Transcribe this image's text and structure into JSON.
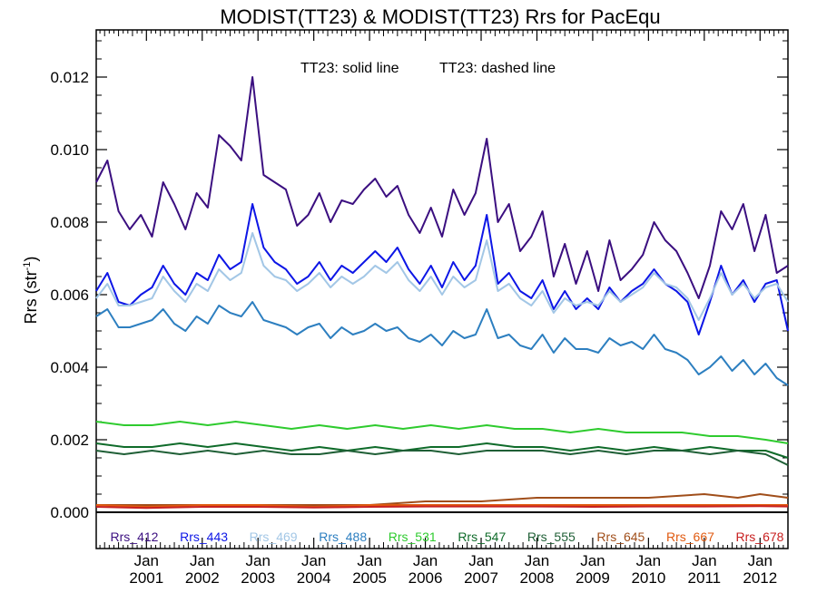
{
  "chart_data": {
    "type": "line",
    "title": "MODIST(TT23) & MODIST(TT23)  Rrs for PacEqu",
    "annotation_solid": "TT23: solid line",
    "annotation_dashed": "TT23: dashed line",
    "ylabel": "Rrs (str",
    "ylabel_sup": "-1",
    "ylabel_close": ")",
    "ylim": [
      -0.001,
      0.0133
    ],
    "yticks": [
      "0.000",
      "0.002",
      "0.004",
      "0.006",
      "0.008",
      "0.010",
      "0.012"
    ],
    "x_range": [
      2000.1,
      2012.5
    ],
    "xticks_month": [
      "Jan",
      "Jan",
      "Jan",
      "Jan",
      "Jan",
      "Jan",
      "Jan",
      "Jan",
      "Jan",
      "Jan",
      "Jan",
      "Jan"
    ],
    "xticks_year": [
      "2001",
      "2002",
      "2003",
      "2004",
      "2005",
      "2006",
      "2007",
      "2008",
      "2009",
      "2010",
      "2011",
      "2012"
    ],
    "grid": false,
    "legend_position": "bottom",
    "series": [
      {
        "name": "Rrs_412",
        "color": "#3b0f80",
        "x": [
          2000.1,
          2000.3,
          2000.5,
          2000.7,
          2000.9,
          2001.1,
          2001.3,
          2001.5,
          2001.7,
          2001.9,
          2002.1,
          2002.3,
          2002.5,
          2002.7,
          2002.9,
          2003.1,
          2003.3,
          2003.5,
          2003.7,
          2003.9,
          2004.1,
          2004.3,
          2004.5,
          2004.7,
          2004.9,
          2005.1,
          2005.3,
          2005.5,
          2005.7,
          2005.9,
          2006.1,
          2006.3,
          2006.5,
          2006.7,
          2006.9,
          2007.1,
          2007.3,
          2007.5,
          2007.7,
          2007.9,
          2008.1,
          2008.3,
          2008.5,
          2008.7,
          2008.9,
          2009.1,
          2009.3,
          2009.5,
          2009.7,
          2009.9,
          2010.1,
          2010.3,
          2010.5,
          2010.7,
          2010.9,
          2011.1,
          2011.3,
          2011.5,
          2011.7,
          2011.9,
          2012.1,
          2012.3,
          2012.5
        ],
        "values": [
          0.0091,
          0.0097,
          0.0083,
          0.0078,
          0.0082,
          0.0076,
          0.0091,
          0.0085,
          0.0078,
          0.0088,
          0.0084,
          0.0104,
          0.0101,
          0.0097,
          0.012,
          0.0093,
          0.0091,
          0.0089,
          0.0079,
          0.0082,
          0.0088,
          0.008,
          0.0086,
          0.0085,
          0.0089,
          0.0092,
          0.0087,
          0.009,
          0.0082,
          0.0077,
          0.0084,
          0.0076,
          0.0089,
          0.0082,
          0.0088,
          0.0103,
          0.008,
          0.0085,
          0.0072,
          0.0076,
          0.0083,
          0.0065,
          0.0074,
          0.0063,
          0.0072,
          0.0061,
          0.0075,
          0.0064,
          0.0067,
          0.0071,
          0.008,
          0.0075,
          0.0072,
          0.0066,
          0.0059,
          0.0068,
          0.0083,
          0.0078,
          0.0085,
          0.0072,
          0.0082,
          0.0066,
          0.0068
        ]
      },
      {
        "name": "Rrs_443",
        "color": "#0d16e6",
        "x": [
          2000.1,
          2000.3,
          2000.5,
          2000.7,
          2000.9,
          2001.1,
          2001.3,
          2001.5,
          2001.7,
          2001.9,
          2002.1,
          2002.3,
          2002.5,
          2002.7,
          2002.9,
          2003.1,
          2003.3,
          2003.5,
          2003.7,
          2003.9,
          2004.1,
          2004.3,
          2004.5,
          2004.7,
          2004.9,
          2005.1,
          2005.3,
          2005.5,
          2005.7,
          2005.9,
          2006.1,
          2006.3,
          2006.5,
          2006.7,
          2006.9,
          2007.1,
          2007.3,
          2007.5,
          2007.7,
          2007.9,
          2008.1,
          2008.3,
          2008.5,
          2008.7,
          2008.9,
          2009.1,
          2009.3,
          2009.5,
          2009.7,
          2009.9,
          2010.1,
          2010.3,
          2010.5,
          2010.7,
          2010.9,
          2011.1,
          2011.3,
          2011.5,
          2011.7,
          2011.9,
          2012.1,
          2012.3,
          2012.5
        ],
        "values": [
          0.0061,
          0.0066,
          0.0058,
          0.0057,
          0.006,
          0.0062,
          0.0068,
          0.0063,
          0.006,
          0.0066,
          0.0064,
          0.0071,
          0.0067,
          0.0069,
          0.0085,
          0.0073,
          0.0069,
          0.0067,
          0.0063,
          0.0065,
          0.0069,
          0.0064,
          0.0068,
          0.0066,
          0.0069,
          0.0072,
          0.0069,
          0.0073,
          0.0067,
          0.0063,
          0.0068,
          0.0062,
          0.0069,
          0.0064,
          0.0068,
          0.0082,
          0.0063,
          0.0066,
          0.0061,
          0.0059,
          0.0064,
          0.0056,
          0.0061,
          0.0056,
          0.0059,
          0.0056,
          0.0062,
          0.0058,
          0.0061,
          0.0063,
          0.0067,
          0.0063,
          0.0061,
          0.0058,
          0.0049,
          0.0058,
          0.0068,
          0.006,
          0.0064,
          0.0058,
          0.0063,
          0.0064,
          0.005
        ]
      },
      {
        "name": "Rrs_469",
        "color": "#a3c7e6",
        "x": [
          2000.1,
          2000.3,
          2000.5,
          2000.7,
          2000.9,
          2001.1,
          2001.3,
          2001.5,
          2001.7,
          2001.9,
          2002.1,
          2002.3,
          2002.5,
          2002.7,
          2002.9,
          2003.1,
          2003.3,
          2003.5,
          2003.7,
          2003.9,
          2004.1,
          2004.3,
          2004.5,
          2004.7,
          2004.9,
          2005.1,
          2005.3,
          2005.5,
          2005.7,
          2005.9,
          2006.1,
          2006.3,
          2006.5,
          2006.7,
          2006.9,
          2007.1,
          2007.3,
          2007.5,
          2007.7,
          2007.9,
          2008.1,
          2008.3,
          2008.5,
          2008.7,
          2008.9,
          2009.1,
          2009.3,
          2009.5,
          2009.7,
          2009.9,
          2010.1,
          2010.3,
          2010.5,
          2010.7,
          2010.9,
          2011.1,
          2011.3,
          2011.5,
          2011.7,
          2011.9,
          2012.1,
          2012.3,
          2012.5
        ],
        "values": [
          0.0059,
          0.0063,
          0.0057,
          0.0057,
          0.0058,
          0.0059,
          0.0065,
          0.0061,
          0.0058,
          0.0063,
          0.0061,
          0.0067,
          0.0064,
          0.0066,
          0.0077,
          0.0068,
          0.0065,
          0.0064,
          0.0061,
          0.0063,
          0.0066,
          0.0062,
          0.0065,
          0.0063,
          0.0065,
          0.0068,
          0.0066,
          0.0069,
          0.0064,
          0.0061,
          0.0065,
          0.006,
          0.0065,
          0.0062,
          0.0064,
          0.0075,
          0.0061,
          0.0063,
          0.0059,
          0.0057,
          0.0061,
          0.0055,
          0.0059,
          0.0057,
          0.0058,
          0.0057,
          0.0061,
          0.0058,
          0.006,
          0.0062,
          0.0066,
          0.0063,
          0.0062,
          0.0059,
          0.0053,
          0.0059,
          0.0066,
          0.006,
          0.0063,
          0.0059,
          0.0062,
          0.0063,
          0.0058
        ]
      },
      {
        "name": "Rrs_488",
        "color": "#2d7fc0",
        "x": [
          2000.1,
          2000.3,
          2000.5,
          2000.7,
          2000.9,
          2001.1,
          2001.3,
          2001.5,
          2001.7,
          2001.9,
          2002.1,
          2002.3,
          2002.5,
          2002.7,
          2002.9,
          2003.1,
          2003.3,
          2003.5,
          2003.7,
          2003.9,
          2004.1,
          2004.3,
          2004.5,
          2004.7,
          2004.9,
          2005.1,
          2005.3,
          2005.5,
          2005.7,
          2005.9,
          2006.1,
          2006.3,
          2006.5,
          2006.7,
          2006.9,
          2007.1,
          2007.3,
          2007.5,
          2007.7,
          2007.9,
          2008.1,
          2008.3,
          2008.5,
          2008.7,
          2008.9,
          2009.1,
          2009.3,
          2009.5,
          2009.7,
          2009.9,
          2010.1,
          2010.3,
          2010.5,
          2010.7,
          2010.9,
          2011.1,
          2011.3,
          2011.5,
          2011.7,
          2011.9,
          2012.1,
          2012.3,
          2012.5
        ],
        "values": [
          0.0054,
          0.0056,
          0.0051,
          0.0051,
          0.0052,
          0.0053,
          0.0056,
          0.0052,
          0.005,
          0.0054,
          0.0052,
          0.0057,
          0.0055,
          0.0054,
          0.0058,
          0.0053,
          0.0052,
          0.0051,
          0.0049,
          0.0051,
          0.0052,
          0.0048,
          0.0051,
          0.0049,
          0.005,
          0.0052,
          0.005,
          0.0051,
          0.0048,
          0.0047,
          0.0049,
          0.0046,
          0.005,
          0.0048,
          0.0049,
          0.0056,
          0.0048,
          0.0049,
          0.0046,
          0.0045,
          0.0049,
          0.0044,
          0.0048,
          0.0045,
          0.0045,
          0.0044,
          0.0048,
          0.0046,
          0.0047,
          0.0045,
          0.0049,
          0.0045,
          0.0044,
          0.0042,
          0.0038,
          0.004,
          0.0043,
          0.0039,
          0.0042,
          0.0038,
          0.0041,
          0.0037,
          0.0035
        ]
      },
      {
        "name": "Rrs_531",
        "color": "#2ecb2e",
        "x": [
          2000.1,
          2000.6,
          2001.1,
          2001.6,
          2002.1,
          2002.6,
          2003.1,
          2003.6,
          2004.1,
          2004.6,
          2005.1,
          2005.6,
          2006.1,
          2006.6,
          2007.1,
          2007.6,
          2008.1,
          2008.6,
          2009.1,
          2009.6,
          2010.1,
          2010.6,
          2011.1,
          2011.6,
          2012.1,
          2012.5
        ],
        "values": [
          0.0025,
          0.0024,
          0.0024,
          0.0025,
          0.0024,
          0.0025,
          0.0024,
          0.0023,
          0.0024,
          0.0023,
          0.0024,
          0.0023,
          0.0024,
          0.0023,
          0.0024,
          0.0023,
          0.0023,
          0.0022,
          0.0023,
          0.0022,
          0.0022,
          0.0022,
          0.0021,
          0.0021,
          0.002,
          0.0019
        ]
      },
      {
        "name": "Rrs_547",
        "color": "#0f6b2a",
        "x": [
          2000.1,
          2000.6,
          2001.1,
          2001.6,
          2002.1,
          2002.6,
          2003.1,
          2003.6,
          2004.1,
          2004.6,
          2005.1,
          2005.6,
          2006.1,
          2006.6,
          2007.1,
          2007.6,
          2008.1,
          2008.6,
          2009.1,
          2009.6,
          2010.1,
          2010.6,
          2011.1,
          2011.6,
          2012.1,
          2012.5
        ],
        "values": [
          0.0019,
          0.0018,
          0.0018,
          0.0019,
          0.0018,
          0.0019,
          0.0018,
          0.0017,
          0.0018,
          0.0017,
          0.0018,
          0.0017,
          0.0018,
          0.0018,
          0.0019,
          0.0018,
          0.0018,
          0.0017,
          0.0018,
          0.0017,
          0.0018,
          0.0017,
          0.0018,
          0.0017,
          0.0017,
          0.0015
        ]
      },
      {
        "name": "Rrs_555",
        "color": "#1f5f36",
        "x": [
          2000.1,
          2000.6,
          2001.1,
          2001.6,
          2002.1,
          2002.6,
          2003.1,
          2003.6,
          2004.1,
          2004.6,
          2005.1,
          2005.6,
          2006.1,
          2006.6,
          2007.1,
          2007.6,
          2008.1,
          2008.6,
          2009.1,
          2009.6,
          2010.1,
          2010.6,
          2011.1,
          2011.6,
          2012.1,
          2012.5
        ],
        "values": [
          0.0017,
          0.0016,
          0.0017,
          0.0016,
          0.0017,
          0.0016,
          0.0017,
          0.0016,
          0.0016,
          0.0017,
          0.0016,
          0.0017,
          0.0017,
          0.0016,
          0.0017,
          0.0017,
          0.0017,
          0.0016,
          0.0017,
          0.0016,
          0.0017,
          0.0017,
          0.0016,
          0.0017,
          0.0016,
          0.0013
        ]
      },
      {
        "name": "Rrs_645",
        "color": "#a04e1a",
        "x": [
          2000.1,
          2001.0,
          2002.0,
          2003.0,
          2004.0,
          2005.0,
          2006.0,
          2007.0,
          2008.0,
          2009.0,
          2010.0,
          2011.0,
          2011.6,
          2012.0,
          2012.5
        ],
        "values": [
          0.0002,
          0.0002,
          0.0002,
          0.0002,
          0.0002,
          0.0002,
          0.0003,
          0.0003,
          0.0004,
          0.0004,
          0.0004,
          0.0005,
          0.0004,
          0.0005,
          0.0004
        ]
      },
      {
        "name": "Rrs_667",
        "color": "#e05a10",
        "x": [
          2000.1,
          2001.0,
          2002.0,
          2003.0,
          2004.0,
          2005.0,
          2006.0,
          2007.0,
          2008.0,
          2009.0,
          2010.0,
          2011.0,
          2012.0,
          2012.5
        ],
        "values": [
          0.0002,
          0.00015,
          0.0002,
          0.0002,
          0.00015,
          0.0002,
          0.0002,
          0.0002,
          0.0002,
          0.0002,
          0.0002,
          0.0002,
          0.0002,
          0.0002
        ]
      },
      {
        "name": "Rrs_678",
        "color": "#c82020",
        "x": [
          2000.1,
          2001.0,
          2002.0,
          2003.0,
          2004.0,
          2005.0,
          2006.0,
          2007.0,
          2008.0,
          2009.0,
          2010.0,
          2011.0,
          2012.0,
          2012.5
        ],
        "values": [
          0.00015,
          0.00012,
          0.00015,
          0.00015,
          0.00013,
          0.00015,
          0.00016,
          0.00016,
          0.00016,
          0.00015,
          0.00016,
          0.00016,
          0.00017,
          0.00016
        ]
      }
    ]
  }
}
